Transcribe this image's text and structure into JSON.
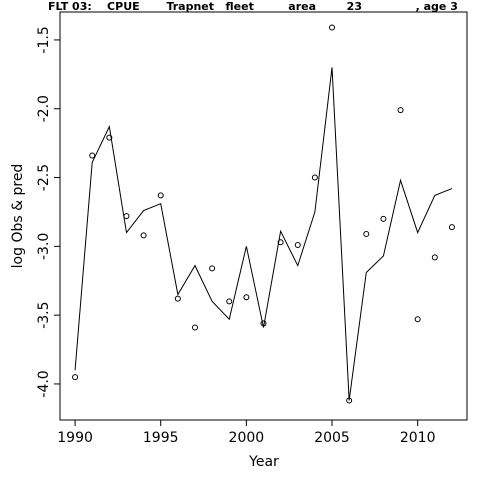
{
  "chart_data": {
    "type": "line",
    "title": "FLT 03:    CPUE       Trapnet   fleet         area        23              , age 3",
    "xlabel": "Year",
    "ylabel": "log Obs & pred",
    "x": [
      1990,
      1991,
      1992,
      1993,
      1994,
      1995,
      1996,
      1997,
      1998,
      1999,
      2000,
      2001,
      2002,
      2003,
      2004,
      2005,
      2006,
      2007,
      2008,
      2009,
      2010,
      2011,
      2012
    ],
    "series": [
      {
        "style": "points",
        "color": "#000000",
        "values": [
          -3.95,
          -2.34,
          -2.21,
          -2.78,
          -2.92,
          -2.63,
          -3.38,
          -3.59,
          -3.16,
          -3.4,
          -3.37,
          -3.56,
          -2.97,
          -2.99,
          -2.5,
          -1.41,
          -4.12,
          -2.91,
          -2.8,
          -2.01,
          -3.53,
          -3.08,
          -2.86
        ]
      },
      {
        "style": "line",
        "color": "#000000",
        "values": [
          -3.9,
          -2.39,
          -2.13,
          -2.9,
          -2.74,
          -2.69,
          -3.35,
          -3.14,
          -3.4,
          -3.53,
          -3.0,
          -3.59,
          -2.89,
          -3.14,
          -2.75,
          -1.7,
          -4.12,
          -3.19,
          -3.07,
          -2.52,
          -2.9,
          -2.63,
          -2.58
        ]
      }
    ],
    "xlim": [
      1989.12,
      2012.88
    ],
    "xticks": [
      1990,
      1995,
      2000,
      2005,
      2010
    ],
    "ylim": [
      -4.262,
      -1.297
    ],
    "yticks": [
      {
        "value": -4,
        "label": "-4.0"
      },
      -3.5,
      {
        "value": -3,
        "label": "-3.0"
      },
      -2.5,
      {
        "value": -2,
        "label": "-2.0"
      },
      -1.5
    ]
  }
}
